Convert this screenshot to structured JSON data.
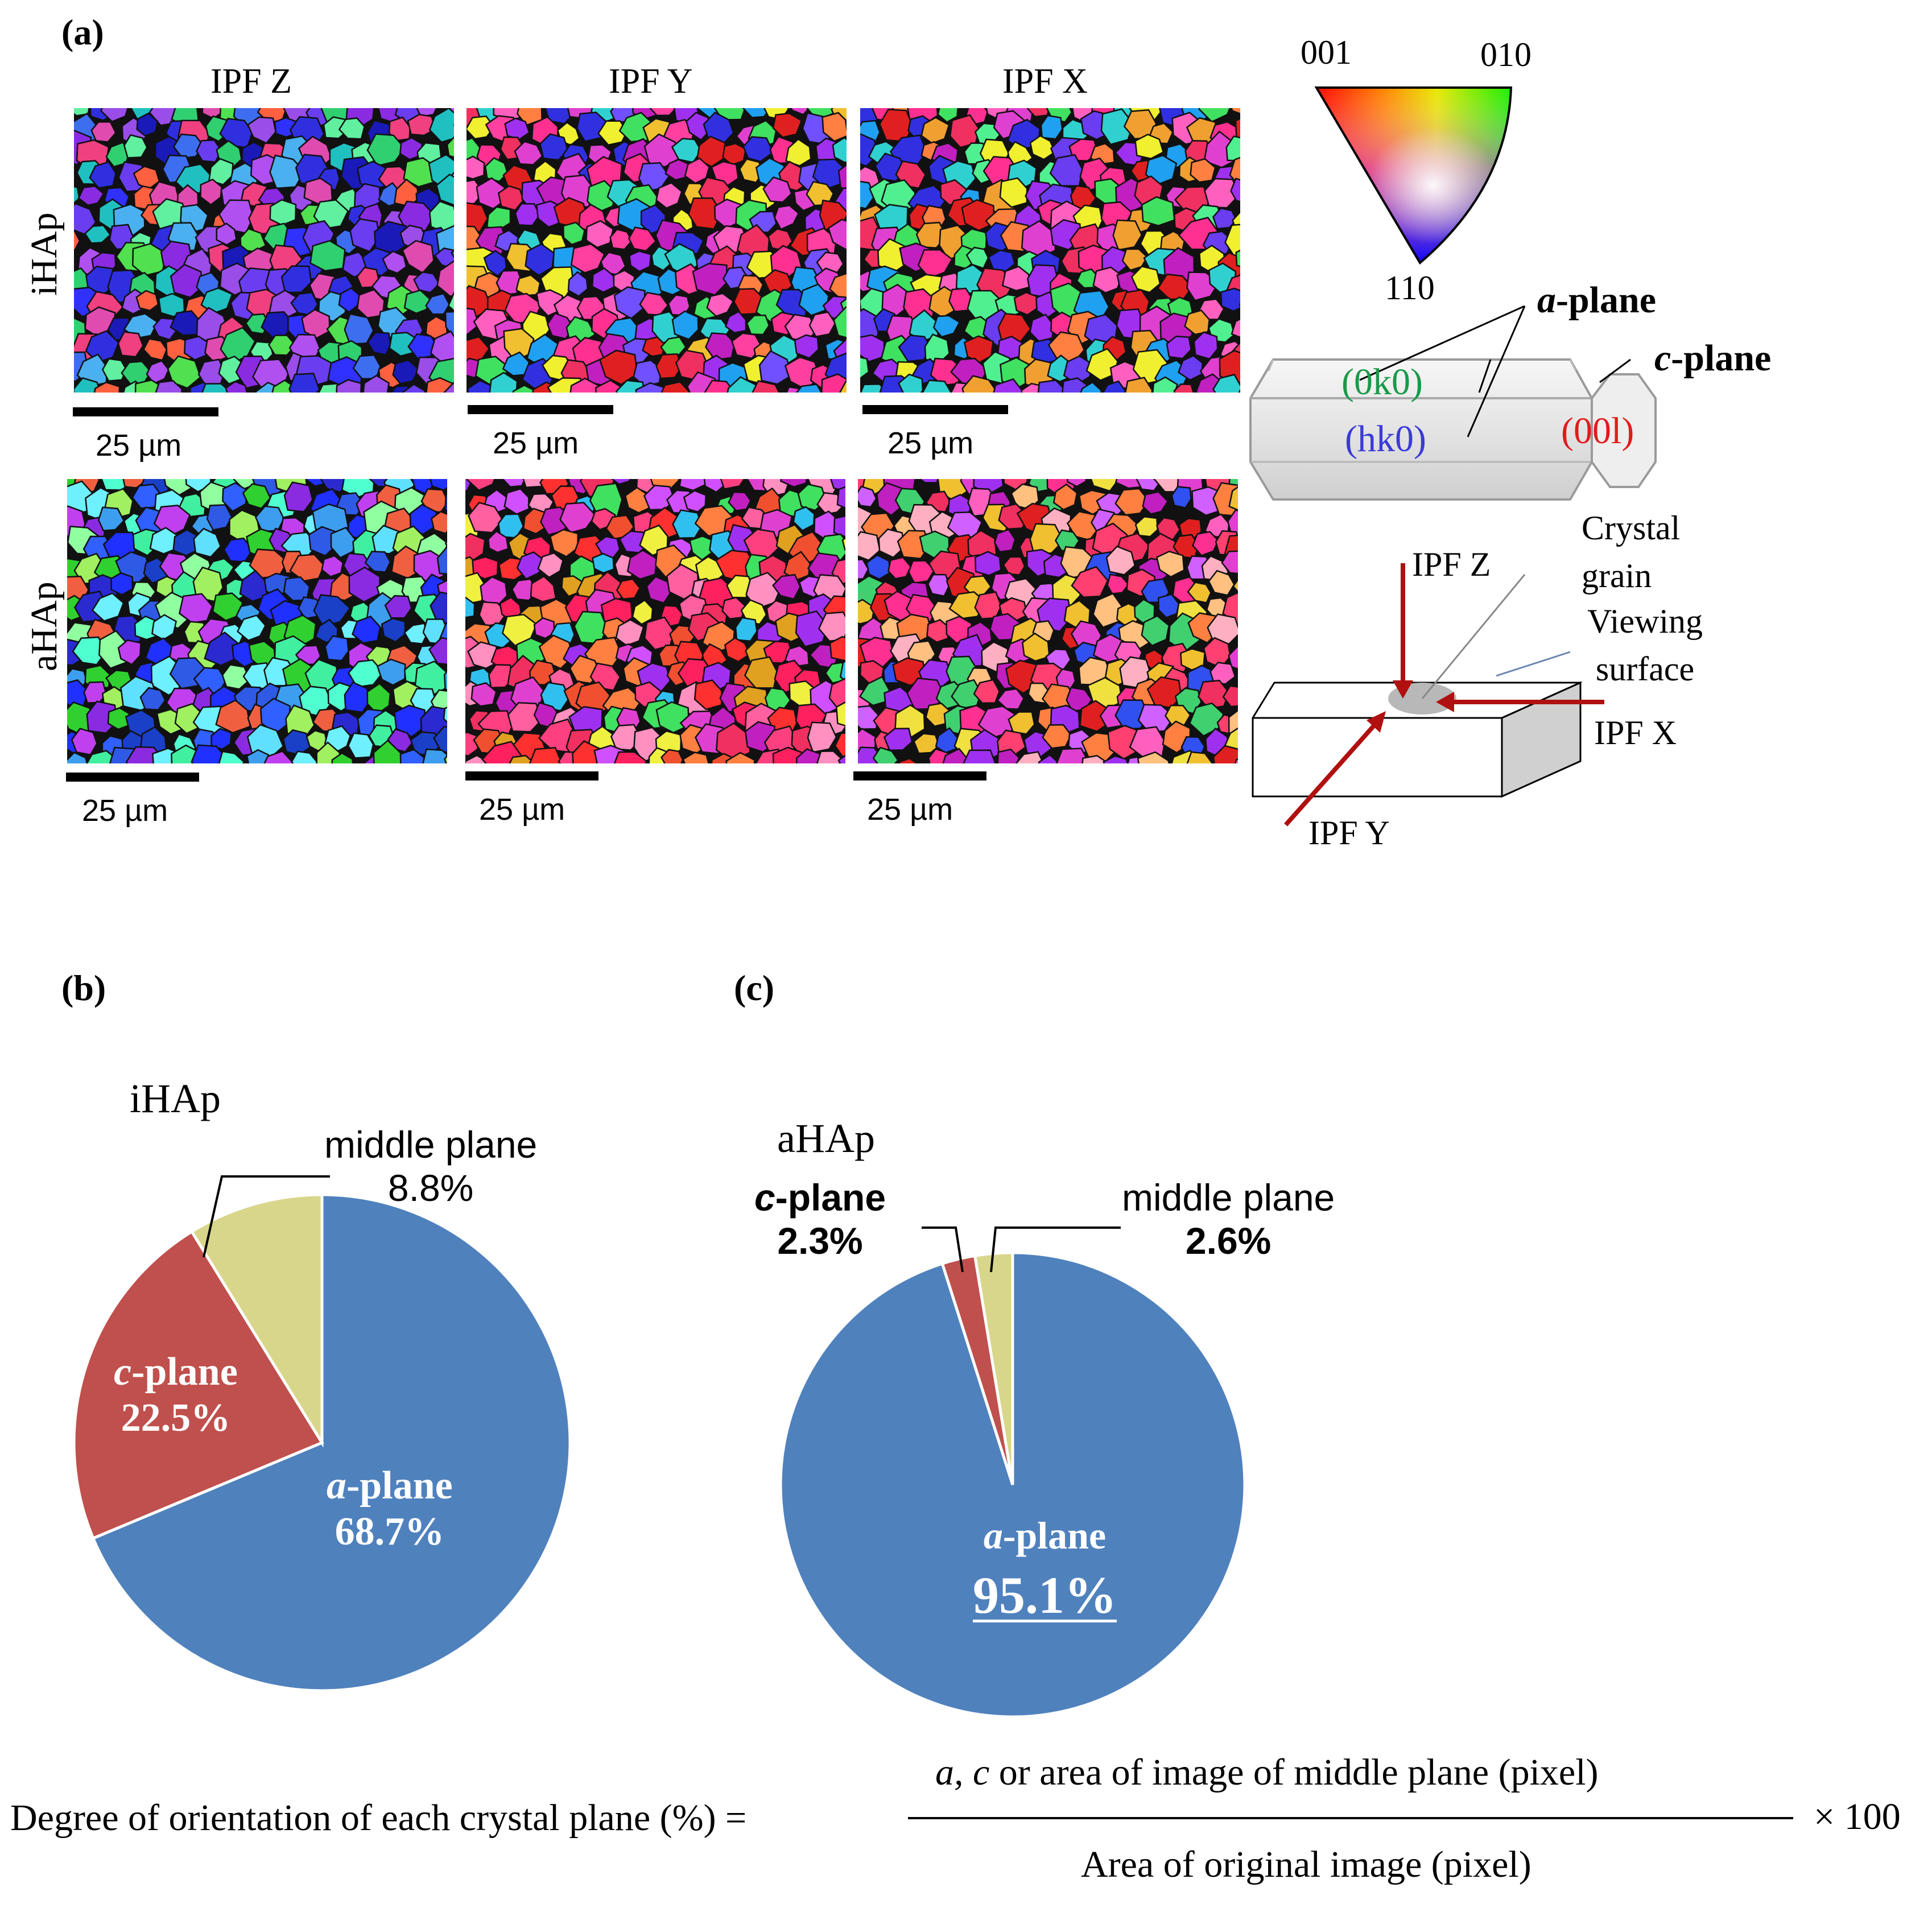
{
  "panel_a": {
    "label": "(a)",
    "column_titles": [
      "IPF Z",
      "IPF Y",
      "IPF X"
    ],
    "row_titles": [
      "iHAp",
      "aHAp"
    ],
    "scale_bar": "25 µm",
    "legend": {
      "corner_001": "001",
      "corner_010": "010",
      "corner_110": "110"
    },
    "crystal": {
      "a_plane_prefix": "a",
      "a_plane_suffix": "-plane",
      "c_plane_prefix": "c",
      "c_plane_suffix": "-plane",
      "face_0k0": "(0k0)",
      "face_hk0": "(hk0)",
      "face_00l": "(00l)"
    },
    "geometry": {
      "ipf_z": "IPF Z",
      "ipf_y": "IPF Y",
      "ipf_x": "IPF X",
      "crystal_grain_1": "Crystal",
      "crystal_grain_2": "grain",
      "viewing_surface_1": "Viewing",
      "viewing_surface_2": "surface"
    }
  },
  "panel_b": {
    "label": "(b)",
    "title": "iHAp"
  },
  "panel_c": {
    "label": "(c)",
    "title": "aHAp"
  },
  "labels": {
    "a_plane_prefix": "a",
    "a_plane_suffix": "-plane",
    "c_plane_prefix": "c",
    "c_plane_suffix": "-plane",
    "middle_plane": "middle plane",
    "b_a_value": "68.7%",
    "b_c_value": "22.5%",
    "b_m_value": "8.8%",
    "c_a_value": "95.1%",
    "c_c_value": "2.3%",
    "c_m_value": "2.6%"
  },
  "chart_data": [
    {
      "type": "pie",
      "title": "iHAp",
      "categories": [
        "a-plane",
        "c-plane",
        "middle plane"
      ],
      "values": [
        68.7,
        22.5,
        8.8
      ],
      "colors": [
        "#4f81bd",
        "#c0504d",
        "#d8d68a"
      ],
      "start": "12 o'clock, clockwise"
    },
    {
      "type": "pie",
      "title": "aHAp",
      "categories": [
        "a-plane",
        "c-plane",
        "middle plane"
      ],
      "values": [
        95.1,
        2.3,
        2.6
      ],
      "colors": [
        "#4f81bd",
        "#c0504d",
        "#d8d68a"
      ],
      "start": "12 o'clock, clockwise"
    }
  ],
  "formula": {
    "lhs": "Degree of orientation of each crystal plane (%) =",
    "numerator_vars": "a, c",
    "numerator_rest": " or area of image of middle plane (pixel)",
    "denominator": "Area of original image (pixel)",
    "multiplier": "× 100"
  }
}
